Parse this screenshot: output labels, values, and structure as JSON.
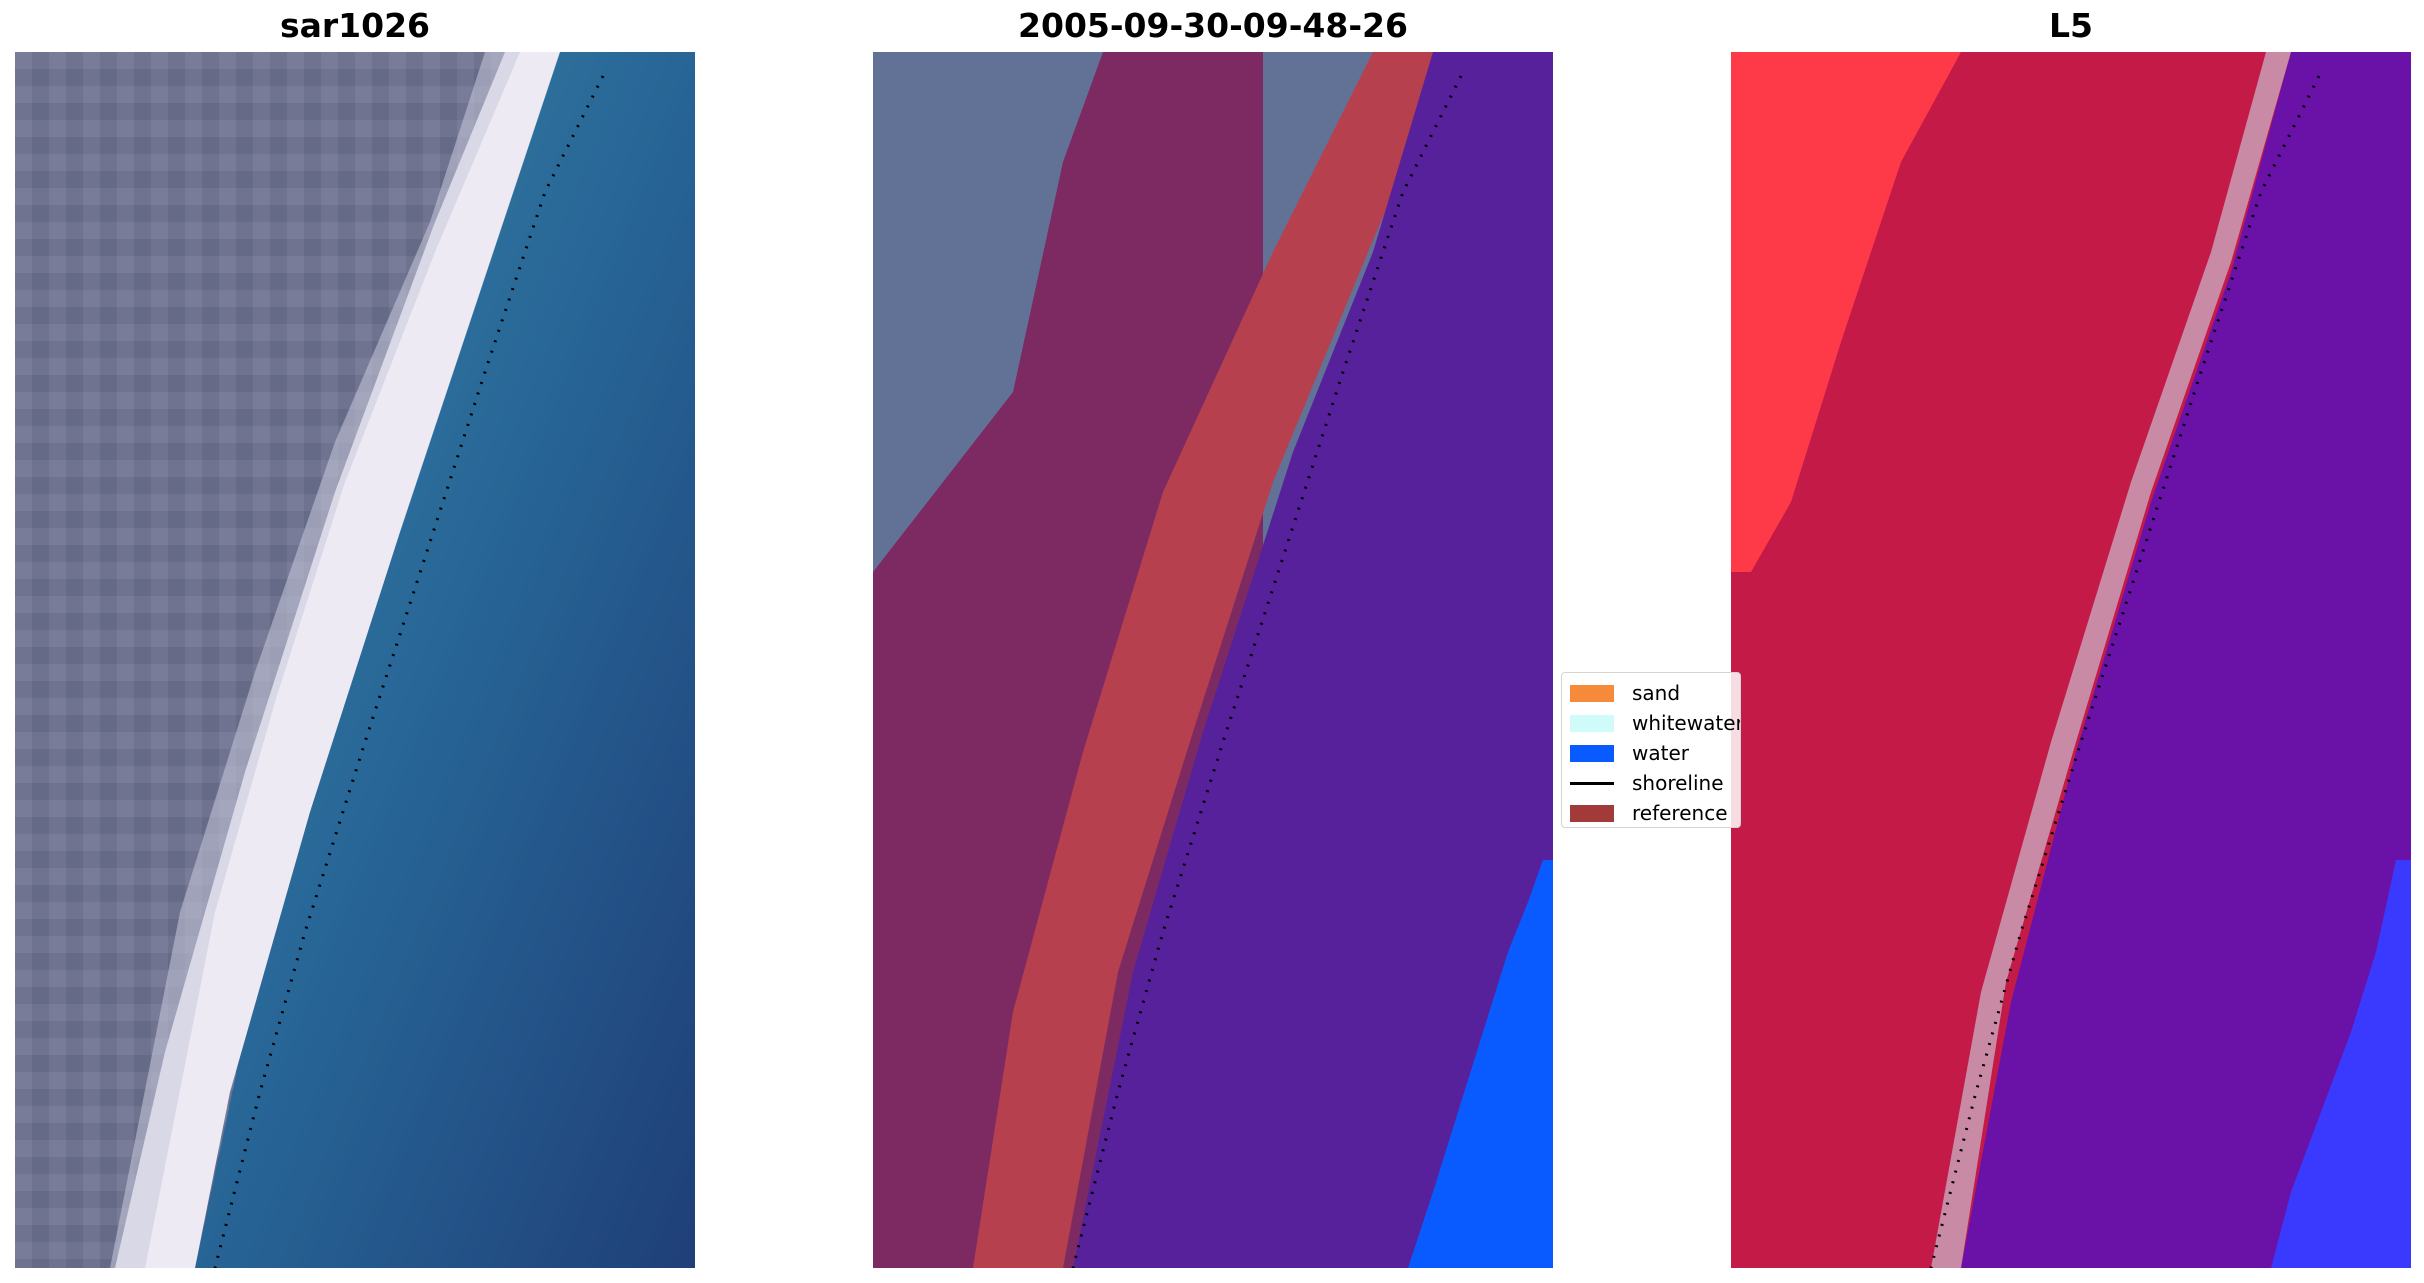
{
  "panels": [
    {
      "title": "sar1026"
    },
    {
      "title": "2005-09-30-09-48-26"
    },
    {
      "title": "L5"
    }
  ],
  "legend": {
    "items": [
      {
        "label": "sand",
        "color": "#f58a3a",
        "kind": "patch"
      },
      {
        "label": "whitewater",
        "color": "#cffcf8",
        "kind": "patch"
      },
      {
        "label": "water",
        "color": "#0a5bff",
        "kind": "patch"
      },
      {
        "label": "shoreline",
        "color": "#000000",
        "kind": "line"
      },
      {
        "label": "reference",
        "color": "#a33a3a",
        "kind": "patch"
      }
    ]
  },
  "colors": {
    "rgb_land": "#6f738f",
    "rgb_sand": "#f4f1f7",
    "rgb_water": "#2a6a9a",
    "class_land_overlay": "#7e2a62",
    "class_reference": "#b7404e",
    "class_water_overlay": "#56219a",
    "class_water": "#0a5bff",
    "l5_land": "#c41a48",
    "l5_bright": "#ff3040",
    "l5_water": "#6a12a8",
    "l5_water_blue": "#3a3aff"
  }
}
